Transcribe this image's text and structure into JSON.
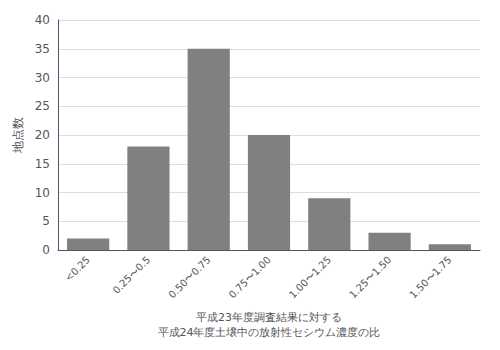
{
  "chart_data": {
    "type": "bar",
    "categories": [
      "<0.25",
      "0.25〜0.5",
      "0.50〜0.75",
      "0.75〜1.00",
      "1.00〜1.25",
      "1.25〜1.50",
      "1.50〜1.75"
    ],
    "values": [
      2,
      18,
      35,
      20,
      9,
      3,
      1
    ],
    "color": "#808080",
    "xlabel": "平成23年度調査結果に対する\n平成24年度土壌中の放射性セシウム濃度の比",
    "ylabel": "地点数",
    "ylim": [
      0,
      40
    ],
    "yticks": [
      0,
      5,
      10,
      15,
      20,
      25,
      30,
      35,
      40
    ],
    "grid": true
  }
}
